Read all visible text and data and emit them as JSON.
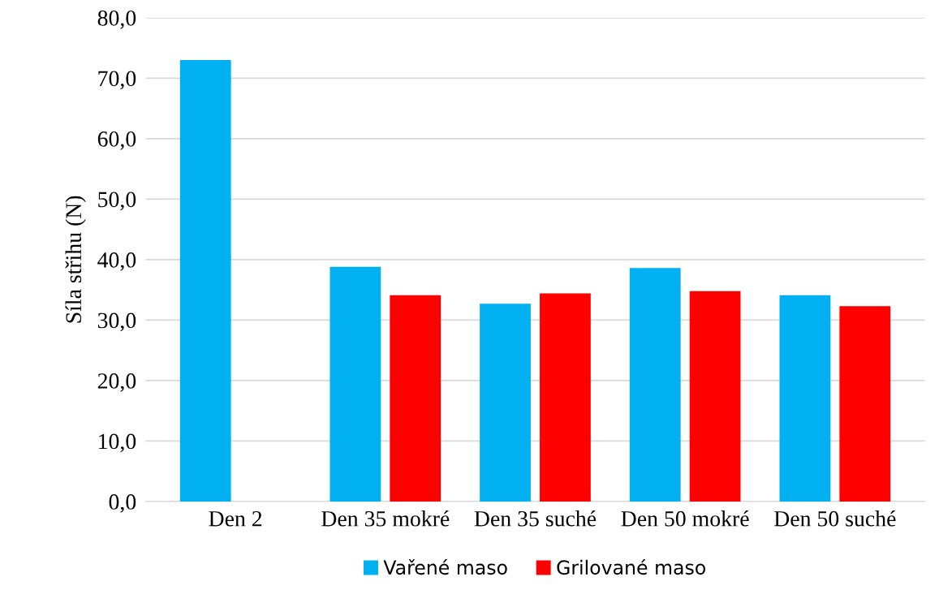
{
  "chart_data": {
    "type": "bar",
    "ylabel": "Síla střihu (N)",
    "categories": [
      "Den 2",
      "Den 35 mokré",
      "Den 35 suché",
      "Den 50 mokré",
      "Den 50 suché"
    ],
    "series": [
      {
        "name": "Vařené maso",
        "color": "#00b0f0",
        "values": [
          73.0,
          38.8,
          32.7,
          38.6,
          34.1
        ]
      },
      {
        "name": "Grilované maso",
        "color": "#ff0000",
        "values": [
          null,
          34.1,
          34.4,
          34.8,
          32.3
        ]
      }
    ],
    "ylim": [
      0,
      80
    ],
    "yticks": [
      {
        "value": 0,
        "label": "0,0"
      },
      {
        "value": 10,
        "label": "10,0"
      },
      {
        "value": 20,
        "label": "20,0"
      },
      {
        "value": 30,
        "label": "30,0"
      },
      {
        "value": 40,
        "label": "40,0"
      },
      {
        "value": 50,
        "label": "50,0"
      },
      {
        "value": 60,
        "label": "60,0"
      },
      {
        "value": 70,
        "label": "70,0"
      },
      {
        "value": 80,
        "label": "80,0"
      }
    ],
    "grid": "y",
    "legend": "bottom"
  }
}
